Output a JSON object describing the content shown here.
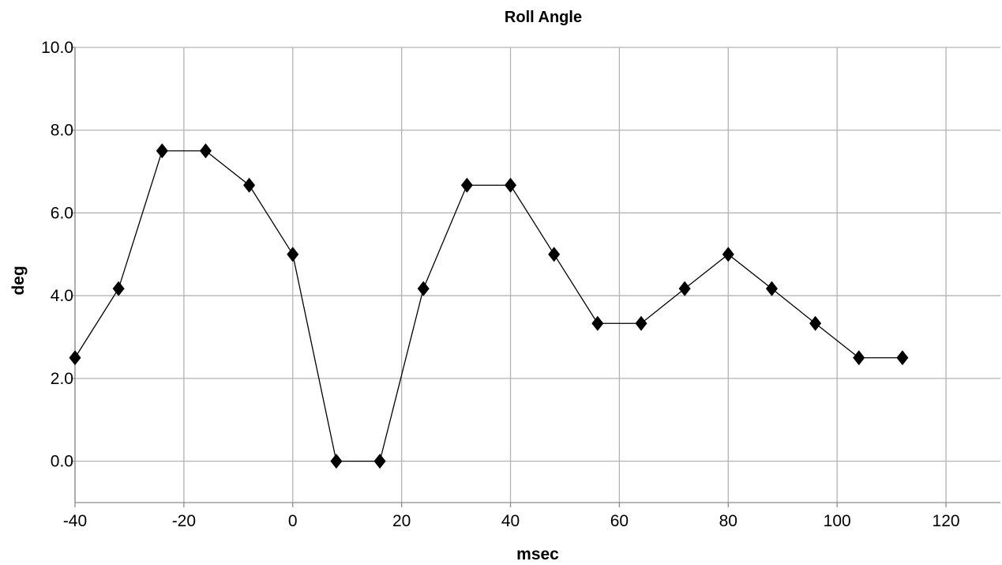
{
  "chart_data": {
    "type": "line",
    "title": "Roll Angle",
    "xlabel": "msec",
    "ylabel": "deg",
    "xlim": [
      -40,
      130
    ],
    "ylim": [
      -1,
      10
    ],
    "xticks": [
      -40,
      -20,
      0,
      20,
      40,
      60,
      80,
      100,
      120
    ],
    "xtick_labels": [
      "-40",
      "-20",
      "0",
      "20",
      "40",
      "60",
      "80",
      "100",
      "120"
    ],
    "yticks": [
      0,
      2,
      4,
      6,
      8,
      10
    ],
    "ytick_labels": [
      "0.0",
      "2.0",
      "4.0",
      "6.0",
      "8.0",
      "10.0"
    ],
    "grid": true,
    "legend": false,
    "marker": "diamond",
    "color": "#000000",
    "series": [
      {
        "x": [
          -40,
          -32,
          -24,
          -16,
          -8,
          0,
          8,
          16,
          24,
          32,
          40,
          48,
          56,
          64,
          72,
          80,
          88,
          96,
          104,
          112
        ],
        "y": [
          2.5,
          4.17,
          7.5,
          7.5,
          6.67,
          5.0,
          0.0,
          0.0,
          4.17,
          6.67,
          6.67,
          5.0,
          3.33,
          3.33,
          4.17,
          5.0,
          4.17,
          3.33,
          2.5,
          2.5
        ]
      }
    ]
  }
}
